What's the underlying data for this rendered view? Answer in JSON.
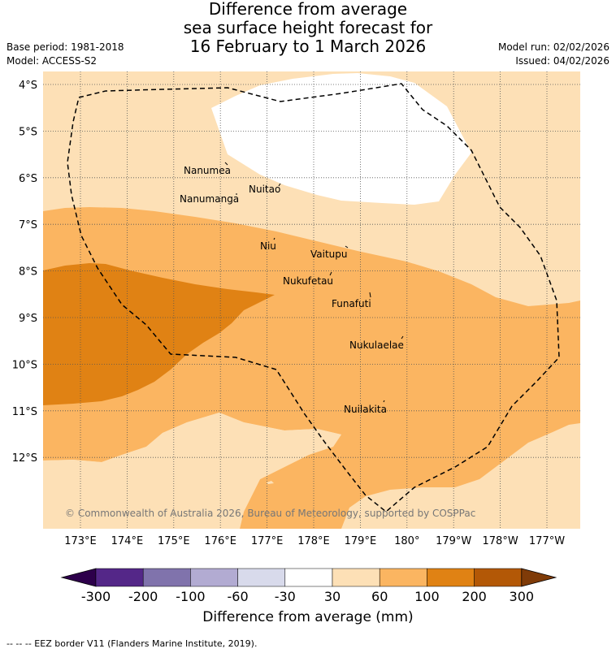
{
  "title": {
    "line1": "Difference from average",
    "line2": "sea surface height forecast for",
    "line3": "16 February to 1 March 2026"
  },
  "meta": {
    "base_period": "Base period: 1981-2018",
    "model": "Model: ACCESS-S2",
    "model_run": "Model run: 02/02/2026",
    "issued": "Issued: 04/02/2026"
  },
  "map": {
    "lat_labels": [
      "4°S",
      "5°S",
      "6°S",
      "7°S",
      "8°S",
      "9°S",
      "10°S",
      "11°S",
      "12°S"
    ],
    "lon_labels": [
      "173°E",
      "174°E",
      "175°E",
      "176°E",
      "177°E",
      "178°E",
      "179°E",
      "180°",
      "179°W",
      "178°W",
      "177°W"
    ],
    "places": [
      "Nanumea",
      "Nuitao",
      "Nanumanga",
      "Niu",
      "Vaitupu",
      "Nukufetau",
      "Funafuti",
      "Nukulaelae",
      "Nuilakita"
    ],
    "copyright": "© Commonwealth of Australia 2026, Bureau of Meteorology, supported by COSPPac",
    "colors": {
      "band_minus30_30": "#ffffff",
      "band_30_60": "#fde0b6",
      "band_60_100": "#fbb561",
      "band_100_200": "#e08214",
      "grid": "#555555"
    }
  },
  "colorbar": {
    "ticks": [
      "-300",
      "-200",
      "-100",
      "-60",
      "-30",
      "30",
      "60",
      "100",
      "200",
      "300"
    ],
    "colors": [
      "#2d004b",
      "#542788",
      "#8073ac",
      "#b2abd2",
      "#d8daeb",
      "#ffffff",
      "#fde0b6",
      "#fbb561",
      "#e08214",
      "#b35806",
      "#7f3b08"
    ],
    "title": "Difference from average (mm)"
  },
  "footer": "--  --  -- EEZ border V11 (Flanders Marine Institute, 2019)."
}
